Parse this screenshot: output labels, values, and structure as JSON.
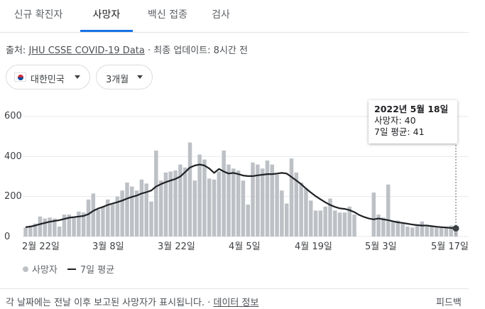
{
  "tabs": [
    {
      "label": "신규 확진자",
      "active": false
    },
    {
      "label": "사망자",
      "active": true
    },
    {
      "label": "백신 접종",
      "active": false
    },
    {
      "label": "검사",
      "active": false
    }
  ],
  "source": {
    "prefix": "출처: ",
    "link": "JHU CSSE COVID-19 Data",
    "separator": " · ",
    "update": "최종 업데이트: 8시간 전"
  },
  "filters": {
    "region": {
      "label": "대한민국",
      "icon": "korea-flag-icon"
    },
    "period": {
      "label": "3개월"
    }
  },
  "tooltip": {
    "date": "2022년 5월 18일",
    "deaths": "사망자: 40",
    "average": "7일 평균: 41"
  },
  "legend": {
    "deaths": "사망자",
    "average": "7일 평균"
  },
  "footer": {
    "note": "각 날짜에는 전날 이후 보고된 사망자가 표시됩니다. · ",
    "link": "데이터 정보",
    "feedback": "피드백"
  },
  "colors": {
    "bar": "#bdc1c6",
    "line": "#202124",
    "accent": "#1a73e8"
  },
  "chart_data": {
    "type": "bar",
    "ylim": [
      0,
      600
    ],
    "yticks": [
      "0",
      "200",
      "400",
      "600"
    ],
    "xticks": [
      "2월 22일",
      "3월 8일",
      "3월 22일",
      "4월 5일",
      "4월 19일",
      "5월 3일",
      "5월 17일"
    ],
    "start_date": "2022-02-19",
    "end_date": "2022-05-18",
    "series": [
      {
        "name": "사망자",
        "type": "bar",
        "values": [
          45,
          50,
          65,
          100,
          90,
          95,
          90,
          50,
          110,
          110,
          100,
          125,
          120,
          185,
          215,
          135,
          150,
          185,
          165,
          200,
          230,
          270,
          250,
          230,
          285,
          265,
          175,
          430,
          280,
          320,
          325,
          330,
          360,
          345,
          470,
          280,
          410,
          385,
          290,
          285,
          325,
          430,
          360,
          340,
          330,
          280,
          160,
          370,
          360,
          340,
          380,
          360,
          310,
          230,
          165,
          390,
          320,
          270,
          240,
          180,
          130,
          130,
          150,
          190,
          130,
          120,
          120,
          150,
          110,
          0,
          0,
          0,
          220,
          110,
          95,
          260,
          75,
          80,
          70,
          50,
          45,
          55,
          75,
          50,
          50,
          45,
          45,
          50,
          55,
          40
        ]
      },
      {
        "name": "7일 평균",
        "type": "line",
        "values": [
          47,
          50,
          55,
          62,
          68,
          74,
          78,
          82,
          88,
          94,
          97,
          100,
          103,
          112,
          128,
          140,
          148,
          158,
          165,
          172,
          180,
          190,
          198,
          205,
          215,
          222,
          230,
          250,
          262,
          272,
          280,
          288,
          300,
          322,
          345,
          355,
          360,
          355,
          340,
          318,
          338,
          325,
          315,
          318,
          312,
          305,
          302,
          302,
          306,
          309,
          312,
          312,
          315,
          318,
          315,
          298,
          280,
          262,
          240,
          220,
          202,
          186,
          171,
          158,
          148,
          141,
          138,
          132,
          122,
          108,
          98,
          90,
          86,
          90,
          86,
          82,
          76,
          71,
          68,
          64,
          60,
          57,
          55,
          55,
          52,
          49,
          47,
          45,
          43,
          41
        ]
      }
    ]
  }
}
